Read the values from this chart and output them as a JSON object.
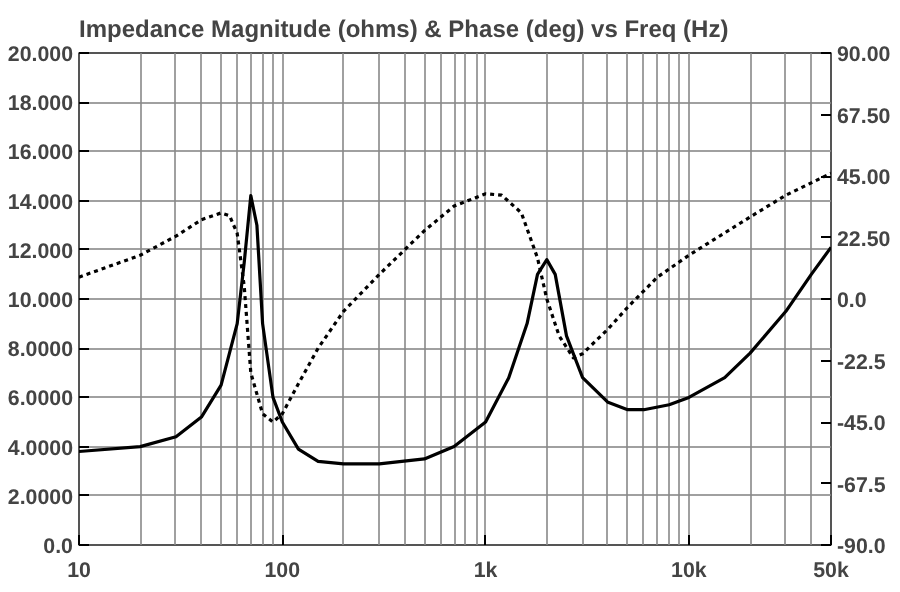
{
  "chart_data": {
    "type": "line",
    "title": "Impedance Magnitude (ohms) & Phase (deg) vs Freq (Hz)",
    "log": "x",
    "grid": true,
    "marker": "none",
    "xlim": [
      10,
      50000
    ],
    "xticks": [
      10,
      100,
      {
        "value": 1000,
        "label": "1k"
      },
      {
        "value": 10000,
        "label": "10k"
      },
      {
        "value": 50000,
        "label": "50k"
      }
    ],
    "ylim": [
      0,
      20
    ],
    "yticks": [
      {
        "value": 0,
        "label": "0.0"
      },
      {
        "value": 2,
        "label": "2.0000"
      },
      {
        "value": 4,
        "label": "4.0000"
      },
      {
        "value": 6,
        "label": "6.0000"
      },
      {
        "value": 8,
        "label": "8.0000"
      },
      {
        "value": 10,
        "label": "10.000"
      },
      {
        "value": 12,
        "label": "12.000"
      },
      {
        "value": 14,
        "label": "14.000"
      },
      {
        "value": 16,
        "label": "16.000"
      },
      {
        "value": 18,
        "label": "18.000"
      },
      {
        "value": 20,
        "label": "20.000"
      }
    ],
    "y2lim": [
      -90,
      90
    ],
    "y2ticks": [
      {
        "value": -90,
        "label": "-90.0"
      },
      -67.5,
      {
        "value": -45,
        "label": "-45.0"
      },
      -22.5,
      {
        "value": 0,
        "label": "0.0"
      },
      {
        "value": 22.5,
        "label": "22.50"
      },
      {
        "value": 45,
        "label": "45.00"
      },
      {
        "value": 67.5,
        "label": "67.50"
      },
      {
        "value": 90,
        "label": "90.00"
      }
    ],
    "series": [
      {
        "color": "#000000",
        "line_style": "solid",
        "x": [
          10,
          20,
          30,
          40,
          50,
          60,
          65,
          70,
          75,
          80,
          90,
          100,
          120,
          150,
          200,
          300,
          500,
          700,
          1000,
          1300,
          1600,
          1800,
          2000,
          2200,
          2500,
          3000,
          4000,
          5000,
          6000,
          8000,
          10000,
          15000,
          20000,
          30000,
          40000,
          50000
        ],
        "values": [
          3.8,
          4.0,
          4.4,
          5.2,
          6.5,
          9,
          11.5,
          14.2,
          13,
          9,
          6,
          5.0,
          3.9,
          3.4,
          3.3,
          3.3,
          3.5,
          4.0,
          5.0,
          6.8,
          9,
          11,
          11.6,
          11,
          8.5,
          6.8,
          5.8,
          5.5,
          5.5,
          5.7,
          6.0,
          6.8,
          7.8,
          9.5,
          11,
          12.1
        ]
      },
      {
        "color": "#000000",
        "line_style": "dotted",
        "axis": "y2",
        "x": [
          10,
          20,
          30,
          40,
          50,
          55,
          60,
          65,
          70,
          80,
          90,
          100,
          120,
          150,
          200,
          300,
          500,
          700,
          1000,
          1200,
          1500,
          1800,
          2000,
          2300,
          2700,
          3000,
          4000,
          5000,
          7000,
          10000,
          20000,
          30000,
          50000
        ],
        "values": [
          8,
          16,
          23,
          29,
          31.5,
          30.5,
          24,
          4.5,
          -27,
          -42,
          -45,
          -42,
          -31,
          -18,
          -4.5,
          9,
          25,
          34,
          38.5,
          38,
          31.5,
          15,
          0,
          -13.5,
          -21.5,
          -20,
          -11,
          -3,
          8,
          16,
          30,
          38,
          46
        ]
      }
    ]
  }
}
